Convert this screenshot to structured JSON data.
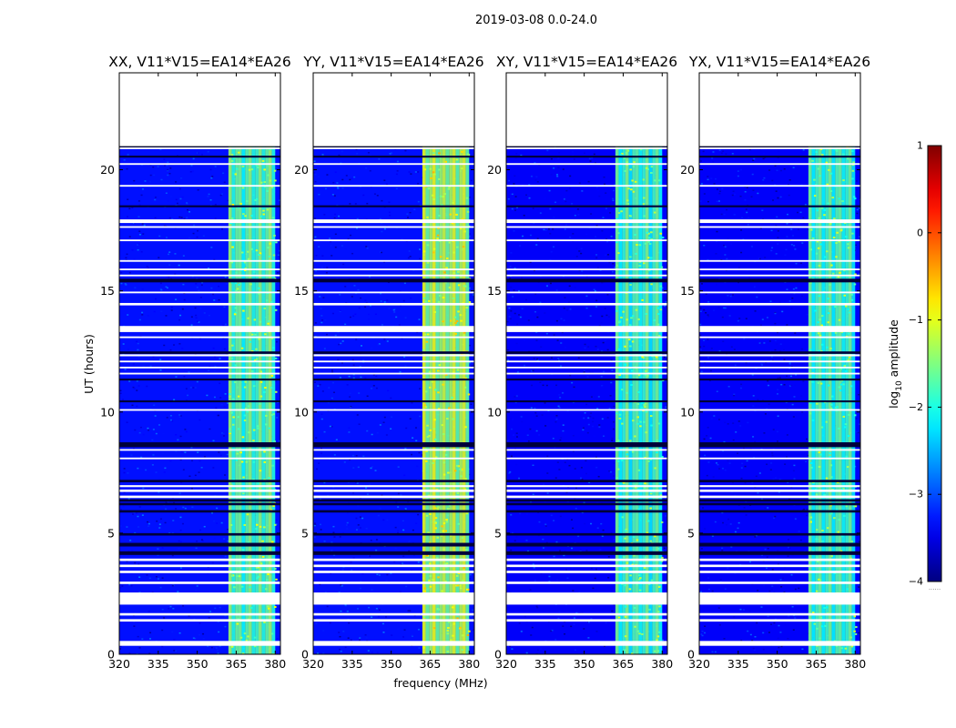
{
  "figure": {
    "suptitle": "2019-03-08 0.0-24.0",
    "xlabel": "frequency (MHz)",
    "ylabel": "UT (hours)",
    "colorbar_label_prefix": "log",
    "colorbar_label_sub": "10",
    "colorbar_label_suffix": " amplitude",
    "colorbar_dots": "......"
  },
  "chart_data": {
    "type": "heatmap",
    "title": "2019-03-08 0.0-24.0",
    "xlabel": "frequency (MHz)",
    "ylabel": "UT (hours)",
    "xlim": [
      320,
      382
    ],
    "ylim": [
      0,
      24
    ],
    "xticks": [
      320,
      335,
      350,
      365,
      380
    ],
    "xtick_labels": [
      "320",
      "335",
      "350",
      "365",
      "380"
    ],
    "yticks": [
      0,
      5,
      10,
      15,
      20
    ],
    "ytick_labels": [
      "0",
      "5",
      "10",
      "15",
      "20"
    ],
    "data_end_hour": 20.95,
    "colorbar": {
      "label": "log10 amplitude",
      "range": [
        -4,
        1
      ],
      "ticks": [
        -4,
        -3,
        -2,
        -1,
        0,
        1
      ],
      "tick_labels": [
        "−4",
        "−3",
        "−2",
        "−1",
        "0",
        "1"
      ],
      "colormap": "jet",
      "colors": [
        "#00007f",
        "#0000ff",
        "#007fff",
        "#00ffff",
        "#7fff7f",
        "#ffff00",
        "#ff7f00",
        "#ff0000",
        "#7f0000"
      ]
    },
    "panels": [
      {
        "title": "XX, V11*V15=EA14*EA26",
        "band_mhz": [
          362,
          380
        ],
        "band_level": -1.7,
        "background_level": -3.3
      },
      {
        "title": "YY, V11*V15=EA14*EA26",
        "band_mhz": [
          362,
          380
        ],
        "band_level": -1.3,
        "background_level": -3.3
      },
      {
        "title": "XY, V11*V15=EA14*EA26",
        "band_mhz": [
          362,
          380
        ],
        "band_level": -1.8,
        "background_level": -3.4
      },
      {
        "title": "YX, V11*V15=EA14*EA26",
        "band_mhz": [
          362,
          380
        ],
        "band_level": -1.8,
        "background_level": -3.4
      }
    ],
    "flagged_white_hours": [
      [
        0.35,
        0.55
      ],
      [
        1.35,
        1.45
      ],
      [
        1.6,
        1.7
      ],
      [
        2.05,
        2.55
      ],
      [
        2.9,
        3.0
      ],
      [
        3.35,
        3.45
      ],
      [
        3.6,
        3.7
      ],
      [
        3.85,
        3.95
      ],
      [
        6.45,
        6.55
      ],
      [
        6.7,
        6.8
      ],
      [
        6.9,
        6.98
      ],
      [
        8.05,
        8.12
      ],
      [
        8.4,
        8.47
      ],
      [
        10.05,
        10.12
      ],
      [
        11.55,
        11.62
      ],
      [
        11.8,
        11.87
      ],
      [
        12.05,
        12.12
      ],
      [
        12.3,
        12.38
      ],
      [
        13.05,
        13.12
      ],
      [
        13.3,
        13.55
      ],
      [
        14.4,
        14.5
      ],
      [
        14.9,
        14.97
      ],
      [
        15.6,
        15.67
      ],
      [
        15.85,
        15.92
      ],
      [
        16.2,
        16.27
      ],
      [
        17.05,
        17.12
      ],
      [
        17.6,
        17.67
      ],
      [
        17.8,
        17.95
      ],
      [
        19.3,
        19.37
      ],
      [
        20.2,
        20.27
      ],
      [
        20.85,
        20.92
      ]
    ],
    "flagged_dark_hours": [
      [
        4.1,
        4.25
      ],
      [
        4.45,
        4.6
      ],
      [
        4.9,
        5.0
      ],
      [
        5.85,
        5.95
      ],
      [
        6.15,
        6.25
      ],
      [
        6.3,
        6.4
      ],
      [
        7.1,
        7.2
      ],
      [
        8.55,
        8.75
      ],
      [
        10.4,
        10.48
      ],
      [
        11.3,
        11.38
      ],
      [
        12.4,
        12.5
      ],
      [
        15.35,
        15.5
      ],
      [
        18.45,
        18.53
      ],
      [
        20.5,
        20.58
      ]
    ]
  }
}
